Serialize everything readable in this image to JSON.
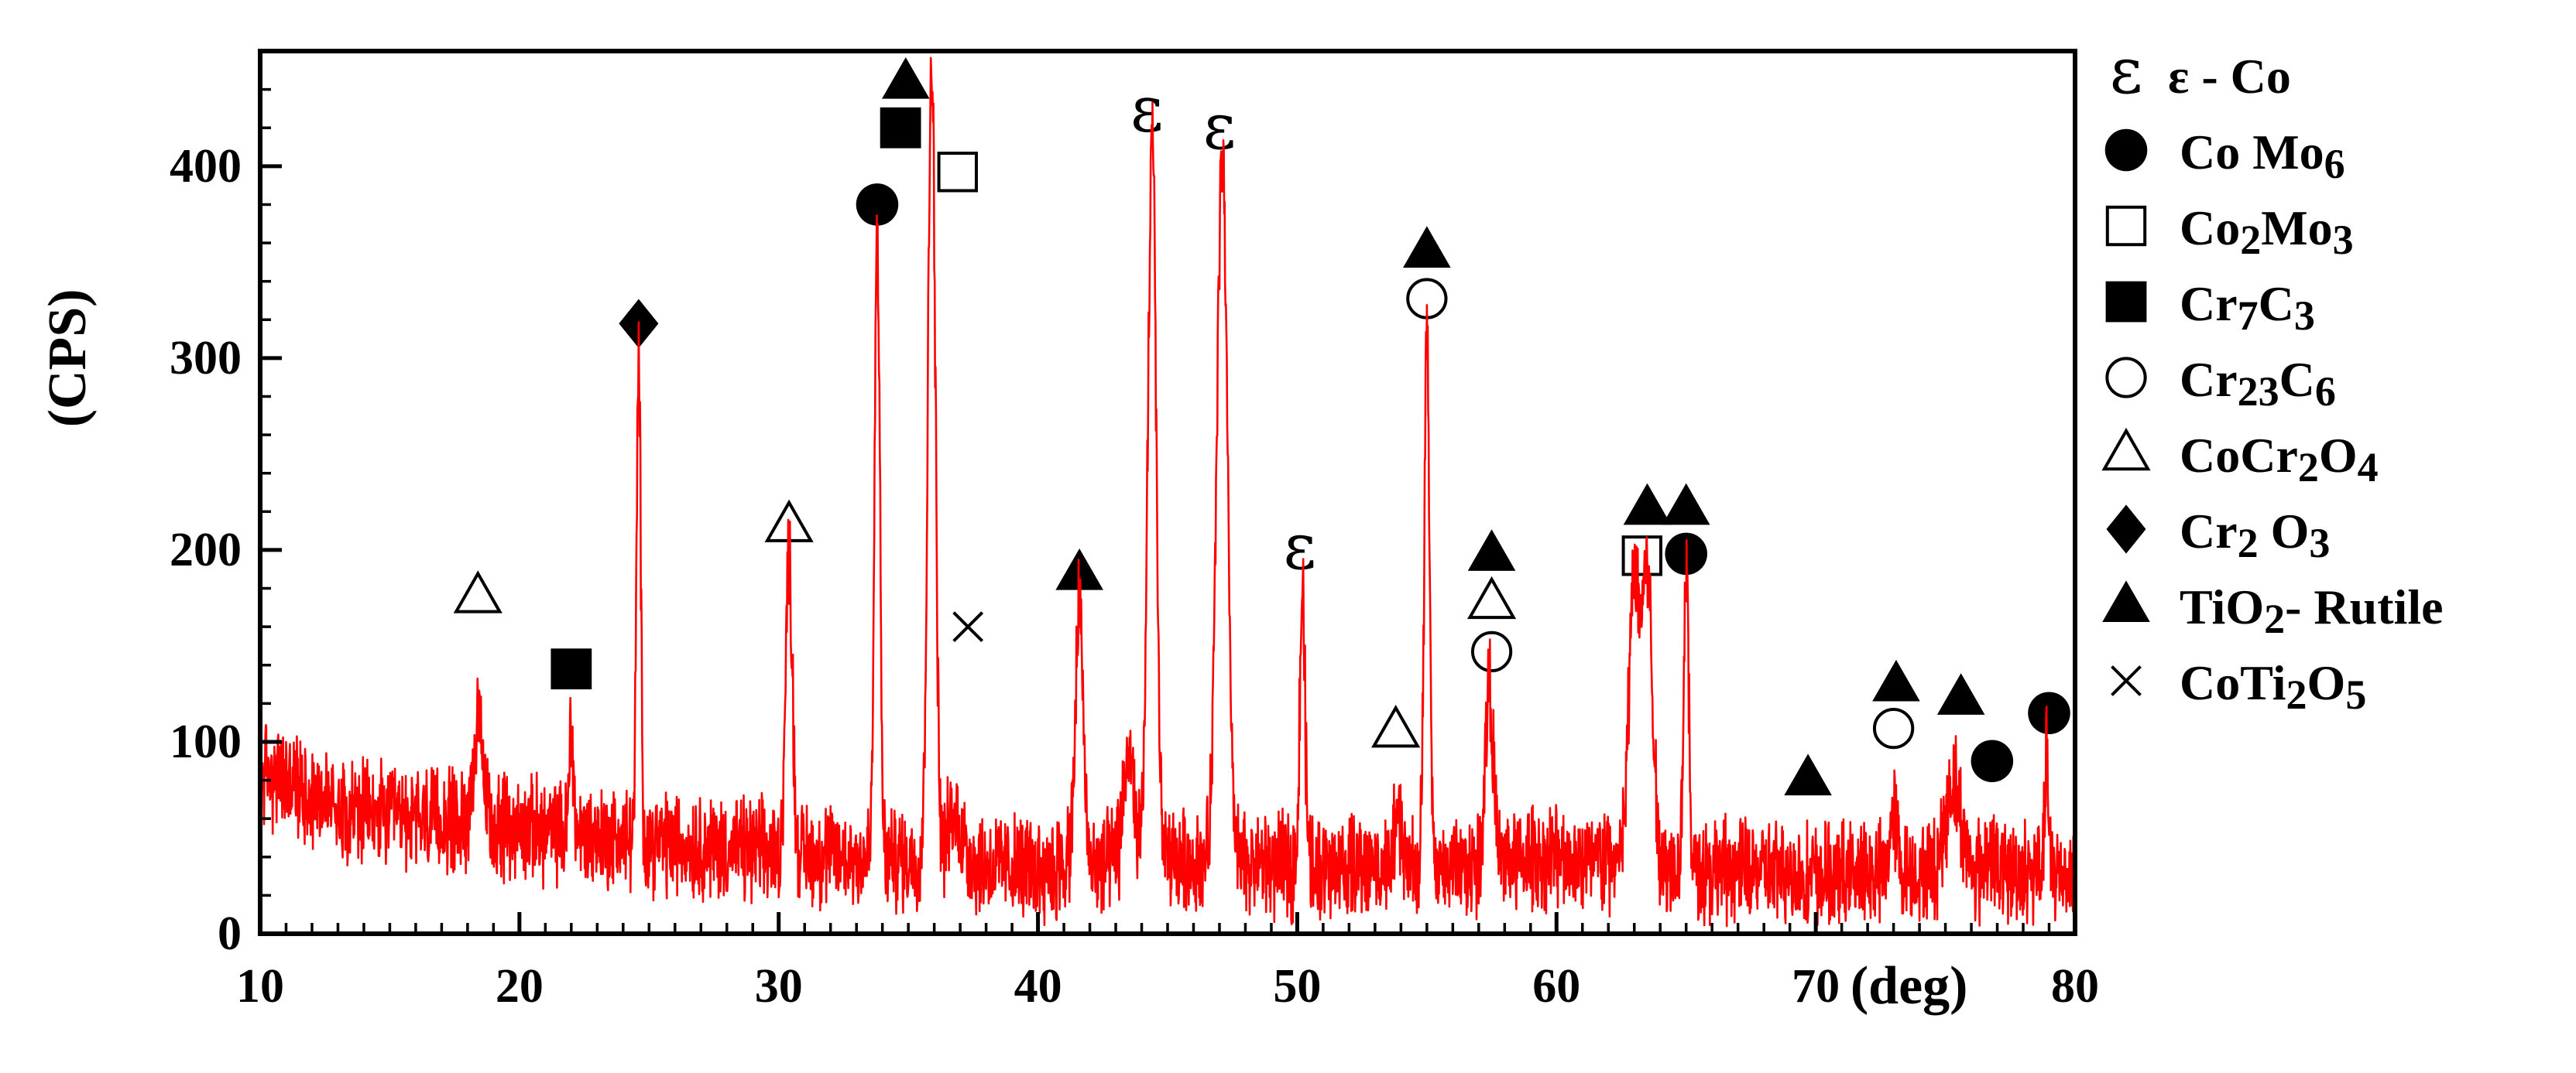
{
  "chart_data": {
    "type": "line",
    "xlabel": "(deg)",
    "ylabel": "(CPS)",
    "xlim": [
      10,
      80
    ],
    "ylim": [
      0,
      460
    ],
    "x_ticks": [
      10,
      20,
      30,
      40,
      50,
      60,
      70,
      80
    ],
    "x_tick_labels": [
      "10",
      "20",
      "30",
      "40",
      "50",
      "60",
      "70",
      "80"
    ],
    "y_ticks": [
      0,
      100,
      200,
      300,
      400
    ],
    "y_tick_labels": [
      "0",
      "100",
      "200",
      "300",
      "400"
    ],
    "grid": false,
    "legend_position": "right",
    "line_color": "#ff0000",
    "baseline": [
      [
        10,
        85
      ],
      [
        14,
        62
      ],
      [
        20,
        55
      ],
      [
        25,
        48
      ],
      [
        30,
        42
      ],
      [
        36,
        38
      ],
      [
        40,
        34
      ],
      [
        45,
        38
      ],
      [
        50,
        36
      ],
      [
        55,
        34
      ],
      [
        60,
        40
      ],
      [
        65,
        35
      ],
      [
        70,
        30
      ],
      [
        75,
        32
      ],
      [
        80,
        32
      ]
    ],
    "peaks": [
      {
        "x": 18.4,
        "y": 105,
        "w": 0.2
      },
      {
        "x": 22.0,
        "y": 110,
        "w": 0.08
      },
      {
        "x": 24.6,
        "y": 298,
        "w": 0.08
      },
      {
        "x": 30.4,
        "y": 198,
        "w": 0.13
      },
      {
        "x": 33.8,
        "y": 368,
        "w": 0.1
      },
      {
        "x": 35.9,
        "y": 460,
        "w": 0.14
      },
      {
        "x": 36.8,
        "y": 60,
        "w": 0.3
      },
      {
        "x": 41.6,
        "y": 172,
        "w": 0.15
      },
      {
        "x": 43.5,
        "y": 95,
        "w": 0.2
      },
      {
        "x": 44.4,
        "y": 415,
        "w": 0.16
      },
      {
        "x": 47.1,
        "y": 408,
        "w": 0.2
      },
      {
        "x": 50.2,
        "y": 180,
        "w": 0.1
      },
      {
        "x": 53.9,
        "y": 60,
        "w": 0.15
      },
      {
        "x": 55.0,
        "y": 315,
        "w": 0.1
      },
      {
        "x": 57.4,
        "y": 132,
        "w": 0.15
      },
      {
        "x": 63.0,
        "y": 185,
        "w": 0.2
      },
      {
        "x": 63.5,
        "y": 185,
        "w": 0.2
      },
      {
        "x": 65.0,
        "y": 185,
        "w": 0.1
      },
      {
        "x": 69.7,
        "y": 30,
        "w": 0.3
      },
      {
        "x": 73.0,
        "y": 62,
        "w": 0.15
      },
      {
        "x": 75.3,
        "y": 78,
        "w": 0.3
      },
      {
        "x": 76.7,
        "y": 45,
        "w": 0.15
      },
      {
        "x": 78.9,
        "y": 100,
        "w": 0.06
      }
    ],
    "markers": [
      {
        "symbol": "open-triangle",
        "x": 18.4,
        "y": 176
      },
      {
        "symbol": "filled-square",
        "x": 22.0,
        "y": 138
      },
      {
        "symbol": "filled-diamond",
        "x": 24.6,
        "y": 318
      },
      {
        "symbol": "open-triangle",
        "x": 30.4,
        "y": 213
      },
      {
        "symbol": "filled-circle",
        "x": 33.8,
        "y": 380
      },
      {
        "symbol": "filled-square",
        "x": 34.7,
        "y": 420
      },
      {
        "symbol": "filled-triangle",
        "x": 34.9,
        "y": 444
      },
      {
        "symbol": "open-square",
        "x": 36.9,
        "y": 397
      },
      {
        "symbol": "cross",
        "x": 37.3,
        "y": 160
      },
      {
        "symbol": "filled-triangle",
        "x": 41.6,
        "y": 188
      },
      {
        "symbol": "epsilon",
        "x": 44.2,
        "y": 428
      },
      {
        "symbol": "epsilon",
        "x": 47.0,
        "y": 419
      },
      {
        "symbol": "epsilon",
        "x": 50.1,
        "y": 200
      },
      {
        "symbol": "open-triangle",
        "x": 53.8,
        "y": 106
      },
      {
        "symbol": "filled-triangle",
        "x": 55.0,
        "y": 356
      },
      {
        "symbol": "open-circle",
        "x": 55.0,
        "y": 331
      },
      {
        "symbol": "filled-triangle",
        "x": 57.5,
        "y": 198
      },
      {
        "symbol": "open-triangle",
        "x": 57.5,
        "y": 173
      },
      {
        "symbol": "open-circle",
        "x": 57.5,
        "y": 147
      },
      {
        "symbol": "open-square",
        "x": 63.3,
        "y": 197
      },
      {
        "symbol": "filled-triangle",
        "x": 63.5,
        "y": 222
      },
      {
        "symbol": "filled-triangle",
        "x": 65.0,
        "y": 222
      },
      {
        "symbol": "filled-circle",
        "x": 65.0,
        "y": 198
      },
      {
        "symbol": "filled-triangle",
        "x": 69.7,
        "y": 81
      },
      {
        "symbol": "filled-triangle",
        "x": 73.1,
        "y": 130
      },
      {
        "symbol": "open-circle",
        "x": 73.0,
        "y": 107
      },
      {
        "symbol": "filled-triangle",
        "x": 75.6,
        "y": 123
      },
      {
        "symbol": "filled-circle",
        "x": 76.8,
        "y": 90
      },
      {
        "symbol": "filled-circle",
        "x": 79.0,
        "y": 115
      }
    ],
    "legend": [
      {
        "symbol": "epsilon",
        "label": "ε - Co"
      },
      {
        "symbol": "filled-circle",
        "label": "Co  Mo6"
      },
      {
        "symbol": "open-square",
        "label": "Co2Mo3"
      },
      {
        "symbol": "filled-square",
        "label": "Cr7C3"
      },
      {
        "symbol": "open-circle",
        "label": "Cr23C6"
      },
      {
        "symbol": "open-triangle",
        "label": "CoCr2O4"
      },
      {
        "symbol": "filled-diamond",
        "label": "Cr2 O3"
      },
      {
        "symbol": "filled-triangle",
        "label": "TiO2- Rutile"
      },
      {
        "symbol": "cross",
        "label": "CoTi2O5"
      }
    ]
  },
  "symbols": {
    "epsilon_glyph": "ε"
  }
}
